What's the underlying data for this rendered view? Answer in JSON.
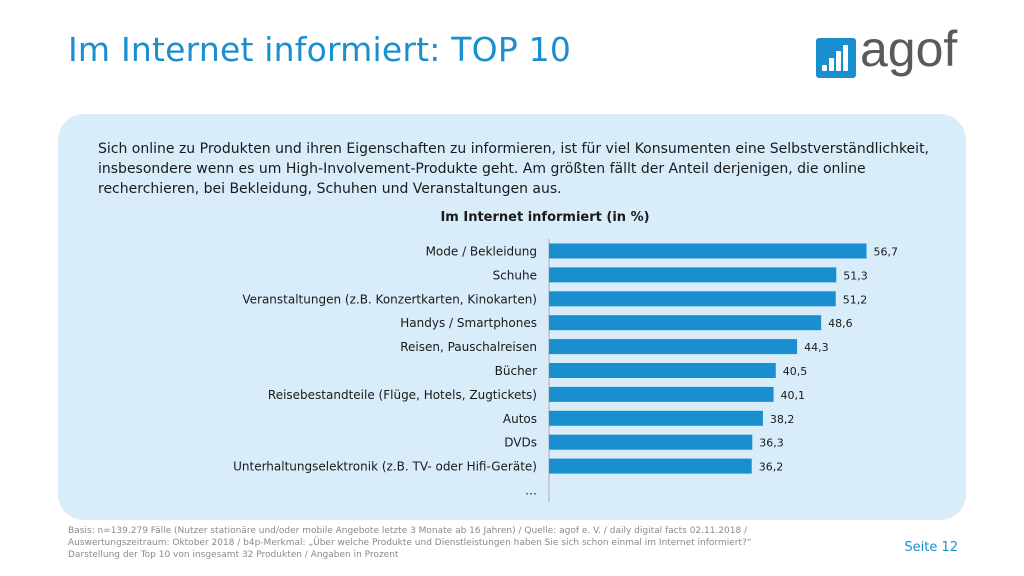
{
  "header": {
    "title": "Im Internet informiert: TOP 10",
    "logo_text": "agof",
    "brand_color": "#1a8fd0"
  },
  "intro": {
    "text": "Sich online zu Produkten und ihren Eigenschaften zu informieren, ist für viel Konsumenten eine Selbstverständlichkeit, insbesondere wenn es um High-Involvement-Produkte geht. Am größten fällt der Anteil derjenigen, die online recherchieren, bei Bekleidung, Schuhen und Veranstaltungen aus."
  },
  "chart_data": {
    "type": "bar",
    "orientation": "horizontal",
    "title": "Im Internet informiert (in %)",
    "categories": [
      "Mode / Bekleidung",
      "Schuhe",
      "Veranstaltungen (z.B. Konzertkarten, Kinokarten)",
      "Handys / Smartphones",
      "Reisen, Pauschalreisen",
      "Bücher",
      "Reisebestandteile (Flüge, Hotels, Zugtickets)",
      "Autos",
      "DVDs",
      "Unterhaltungselektronik (z.B. TV- oder Hifi-Geräte)",
      "…"
    ],
    "values": [
      56.7,
      51.3,
      51.2,
      48.6,
      44.3,
      40.5,
      40.1,
      38.2,
      36.3,
      36.2,
      null
    ],
    "value_labels": [
      "56,7",
      "51,3",
      "51,2",
      "48,6",
      "44,3",
      "40,5",
      "40,1",
      "38,2",
      "36,3",
      "36,2",
      ""
    ],
    "bar_color": "#1a8fd0",
    "xlim": [
      0,
      60
    ],
    "grid": false,
    "data_labels": true
  },
  "footer": {
    "note_line1": "Basis: n=139.279 Fälle (Nutzer stationäre und/oder mobile Angebote letzte 3 Monate ab 16 Jahren) / Quelle: agof e. V. / daily digital facts 02.11.2018 /",
    "note_line2": "Auswertungszeitraum: Oktober 2018 / b4p-Merkmal: „Über welche Produkte und Dienstleistungen haben Sie sich schon einmal im Internet informiert?“",
    "note_line3": "Darstellung der Top 10 von insgesamt 32 Produkten / Angaben in Prozent",
    "page": "Seite 12"
  }
}
